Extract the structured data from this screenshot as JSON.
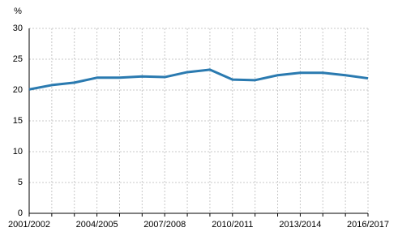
{
  "chart_data": {
    "type": "line",
    "y_label": "%",
    "categories": [
      "2001/2002",
      null,
      null,
      "2004/2005",
      null,
      null,
      "2007/2008",
      null,
      null,
      "2010/2011",
      null,
      null,
      "2013/2014",
      null,
      null,
      "2016/2017"
    ],
    "series": [
      {
        "color": "#2a7ab0",
        "values": [
          20.1,
          20.8,
          21.2,
          22.0,
          22.0,
          22.2,
          22.1,
          22.9,
          23.3,
          21.7,
          21.6,
          22.4,
          22.8,
          22.8,
          22.4,
          21.9
        ]
      }
    ],
    "ylim": [
      0,
      30
    ],
    "yticks": [
      0,
      5,
      10,
      15,
      20,
      25,
      30
    ],
    "grid": true
  }
}
